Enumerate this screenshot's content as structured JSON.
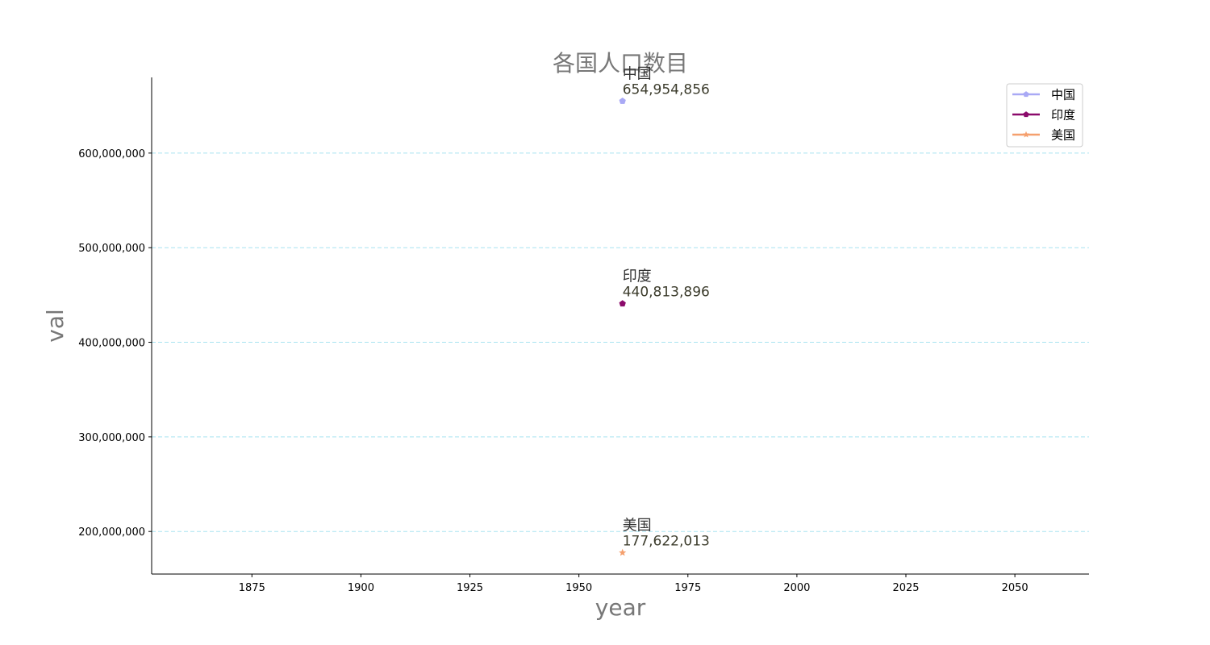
{
  "chart_data": {
    "type": "line",
    "title": "各国人口数目",
    "xlabel": "year",
    "ylabel": "val",
    "xlim": [
      1852,
      2067
    ],
    "ylim": [
      155000000,
      680000000
    ],
    "xticks": [
      1875,
      1900,
      1925,
      1950,
      1975,
      2000,
      2025,
      2050
    ],
    "xtick_labels": [
      "1875",
      "1900",
      "1925",
      "1950",
      "1975",
      "2000",
      "2025",
      "2050"
    ],
    "yticks": [
      200000000,
      300000000,
      400000000,
      500000000,
      600000000
    ],
    "ytick_labels": [
      "200,000,000",
      "300,000,000",
      "400,000,000",
      "500,000,000",
      "600,000,000"
    ],
    "grid": "y-dashed",
    "legend_position": "top-right",
    "series": [
      {
        "name": "中国",
        "color": "#a9a9f5",
        "marker": "pentagon",
        "x": [
          1960
        ],
        "values": [
          654954856
        ],
        "value_label": "654,954,856"
      },
      {
        "name": "印度",
        "color": "#8b0a6b",
        "marker": "pentagon",
        "x": [
          1960
        ],
        "values": [
          440813896
        ],
        "value_label": "440,813,896"
      },
      {
        "name": "美国",
        "color": "#f5a06e",
        "marker": "star",
        "x": [
          1960
        ],
        "values": [
          177622013
        ],
        "value_label": "177,622,013"
      }
    ]
  }
}
